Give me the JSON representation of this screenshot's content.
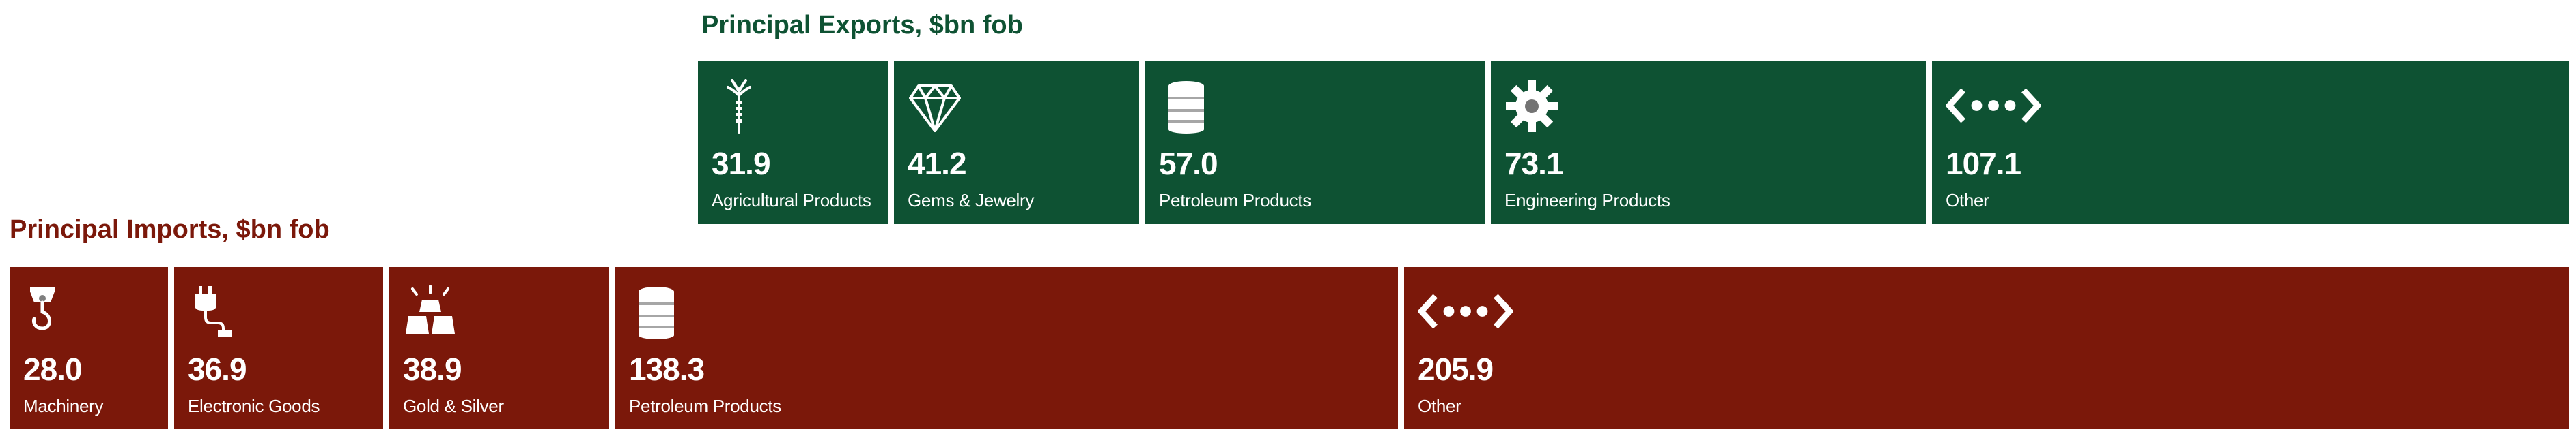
{
  "chart_data": [
    {
      "type": "bar",
      "title": "Principal Exports, $bn fob",
      "color": "#0e5233",
      "categories": [
        "Agricultural Products",
        "Gems & Jewelry",
        "Petroleum Products",
        "Engineering Products",
        "Other"
      ],
      "values": [
        31.9,
        41.2,
        57.0,
        73.1,
        107.1
      ],
      "labels": [
        "31.9",
        "41.2",
        "57.0",
        "73.1",
        "107.1"
      ],
      "icons": [
        "wheat-icon",
        "diamond-icon",
        "oil-barrel-icon",
        "gear-icon",
        "other-dots-icon"
      ]
    },
    {
      "type": "bar",
      "title": "Principal Imports, $bn fob",
      "color": "#7b180a",
      "categories": [
        "Machinery",
        "Electronic Goods",
        "Gold & Silver",
        "Petroleum Products",
        "Other"
      ],
      "values": [
        28.0,
        36.9,
        38.9,
        138.3,
        205.9
      ],
      "labels": [
        "28.0",
        "36.9",
        "38.9",
        "138.3",
        "205.9"
      ],
      "icons": [
        "crane-hook-icon",
        "plug-icon",
        "gold-bars-icon",
        "oil-barrel-icon",
        "other-dots-icon"
      ]
    }
  ]
}
